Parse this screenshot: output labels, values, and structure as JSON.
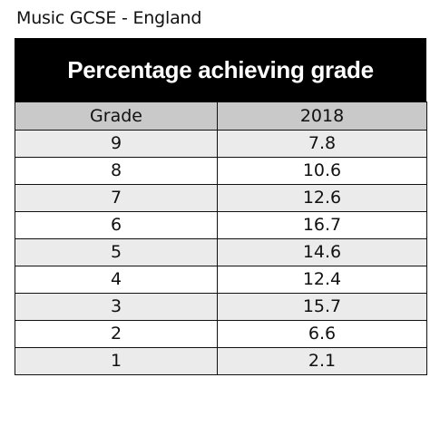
{
  "caption": "Music GCSE - England",
  "table": {
    "title": "Percentage achieving grade",
    "headers": [
      "Grade",
      "2018"
    ],
    "rows": [
      [
        "9",
        "7.8"
      ],
      [
        "8",
        "10.6"
      ],
      [
        "7",
        "12.6"
      ],
      [
        "6",
        "16.7"
      ],
      [
        "5",
        "14.6"
      ],
      [
        "4",
        "12.4"
      ],
      [
        "3",
        "15.7"
      ],
      [
        "2",
        "6.6"
      ],
      [
        "1",
        "2.1"
      ]
    ]
  },
  "colors": {
    "title_bg": "#000000",
    "header_bg": "#c9c9c9",
    "row_alt_bg": "#ebebeb"
  }
}
